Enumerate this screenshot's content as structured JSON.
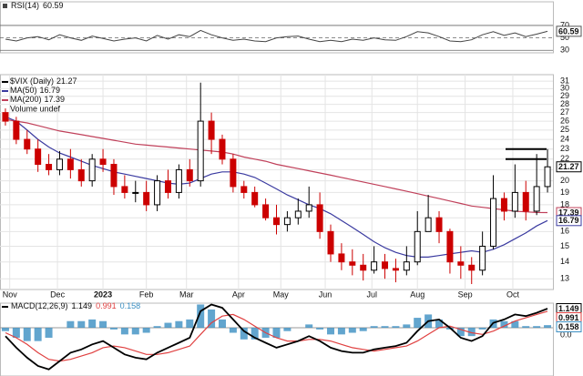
{
  "chart_data": [
    {
      "type": "line",
      "title": "RSI(14)",
      "color": "#444444",
      "values": [
        48,
        45,
        50,
        52,
        47,
        55,
        50,
        46,
        53,
        49,
        45,
        48,
        50,
        45,
        54,
        48,
        55,
        52,
        62,
        55,
        50,
        46,
        48,
        45,
        44,
        50,
        52,
        53,
        48,
        44,
        46,
        44,
        48,
        46,
        50,
        47,
        46,
        52,
        60,
        58,
        52,
        45,
        44,
        47,
        55,
        60,
        54,
        58,
        52,
        56,
        60.59
      ],
      "ylim": [
        26,
        108
      ],
      "yticks": [
        30,
        50,
        70
      ]
    },
    {
      "type": "candlestick",
      "title": "$VIX (Daily)",
      "volume_label": "Volume undef",
      "up_color": "#000000",
      "down_color": "#cc0000",
      "open": [
        27,
        26,
        24,
        23,
        21.5,
        21,
        22,
        21,
        20,
        22,
        21.5,
        19.5,
        19,
        19,
        18,
        20,
        19,
        21,
        20,
        26,
        24,
        22,
        19.5,
        19,
        18,
        17,
        16.5,
        17,
        17.5,
        18,
        16,
        14.5,
        14,
        13.8,
        13.5,
        14,
        13.6,
        13.5,
        14,
        16,
        17,
        16,
        14,
        13.8,
        13.5,
        15,
        18.5,
        17.5,
        19,
        17.5,
        19.5
      ],
      "high": [
        27.5,
        26.5,
        25,
        24,
        22.5,
        22.8,
        23,
        22,
        22.5,
        23,
        22,
        20.5,
        20,
        20,
        20.5,
        21,
        21.5,
        22,
        30.8,
        27,
        24.5,
        22.5,
        20,
        19.5,
        18.5,
        18,
        17.5,
        18.5,
        19.5,
        19,
        16.5,
        15.2,
        14.8,
        14.5,
        15,
        14.5,
        14.2,
        15,
        17.5,
        18.8,
        17.5,
        16.2,
        15,
        14.3,
        16,
        20.5,
        19,
        21.5,
        20,
        22.5,
        23
      ],
      "low": [
        25.5,
        23.5,
        22.5,
        20.8,
        20.5,
        20.5,
        20.2,
        19.5,
        19.5,
        20.8,
        18.8,
        18.5,
        18.2,
        17.5,
        17.5,
        18.5,
        18.5,
        19.5,
        19.5,
        22.5,
        21.5,
        19,
        18.5,
        17.8,
        16.8,
        15.8,
        16,
        16.5,
        17,
        15.5,
        14,
        13.5,
        13.2,
        12.9,
        13.3,
        13,
        12.8,
        13.2,
        13.8,
        16,
        15.2,
        13.3,
        13,
        12.7,
        13.2,
        14.8,
        16.8,
        17,
        16.8,
        17.2,
        19
      ],
      "close": [
        26,
        24,
        23,
        21.5,
        21,
        22,
        21,
        20,
        22,
        21.5,
        19.5,
        19,
        19,
        18,
        20,
        19,
        21,
        20,
        26,
        24,
        22,
        19.5,
        19,
        18,
        17,
        16.5,
        17,
        17.5,
        18,
        16,
        14.5,
        14,
        13.8,
        13.5,
        14,
        13.6,
        13.5,
        14,
        16,
        17,
        16,
        14,
        13.8,
        13.5,
        15,
        18.5,
        17.5,
        19,
        17.5,
        19.5,
        21.27
      ],
      "series": [
        {
          "name": "MA(50)",
          "color": "#3a3aa0",
          "values": [
            26.5,
            26,
            25,
            24,
            23.2,
            22.6,
            22.2,
            21.8,
            21.4,
            21.1,
            20.8,
            20.6,
            20.4,
            20.2,
            20,
            19.8,
            19.7,
            19.8,
            20.2,
            20.6,
            20.8,
            20.8,
            20.6,
            20.3,
            19.8,
            19.3,
            18.8,
            18.4,
            18,
            17.7,
            17.3,
            16.8,
            16.3,
            15.8,
            15.3,
            14.9,
            14.6,
            14.4,
            14.3,
            14.3,
            14.4,
            14.5,
            14.6,
            14.7,
            14.6,
            14.8,
            15.1,
            15.5,
            15.9,
            16.4,
            16.79
          ]
        },
        {
          "name": "MA(200)",
          "color": "#c0405a",
          "values": [
            26.2,
            26,
            25.8,
            25.5,
            25.2,
            24.9,
            24.7,
            24.5,
            24.3,
            24.1,
            23.9,
            23.7,
            23.5,
            23.4,
            23.3,
            23.2,
            23.1,
            23,
            22.9,
            22.8,
            22.7,
            22.5,
            22.2,
            22,
            21.8,
            21.5,
            21.3,
            21.1,
            20.9,
            20.7,
            20.5,
            20.3,
            20.1,
            19.9,
            19.7,
            19.5,
            19.3,
            19.1,
            18.9,
            18.7,
            18.5,
            18.3,
            18.1,
            17.9,
            17.8,
            17.7,
            17.6,
            17.5,
            17.45,
            17.4,
            17.39
          ]
        }
      ],
      "levels": [
        23,
        22
      ],
      "xlim": [
        -0.5,
        50.5
      ],
      "xticks": [
        {
          "value": 0.4,
          "label": "Nov"
        },
        {
          "value": 4.8,
          "label": "Dec"
        },
        {
          "value": 9,
          "label": "2023"
        },
        {
          "value": 13,
          "label": "Feb"
        },
        {
          "value": 16.7,
          "label": "Mar"
        },
        {
          "value": 21.5,
          "label": "Apr"
        },
        {
          "value": 25.4,
          "label": "May"
        },
        {
          "value": 29.5,
          "label": "Jun"
        },
        {
          "value": 33.8,
          "label": "Jul"
        },
        {
          "value": 38,
          "label": "Aug"
        },
        {
          "value": 42.4,
          "label": "Sep"
        },
        {
          "value": 46.8,
          "label": "Oct"
        }
      ],
      "ylim": [
        12.4,
        31.9
      ],
      "log": true,
      "yticks": [
        13,
        14,
        15,
        16,
        17,
        18,
        19,
        20,
        21,
        22,
        23,
        24,
        25,
        26,
        27,
        28,
        29,
        30,
        31
      ],
      "grid": true
    },
    {
      "type": "macd",
      "title": "MACD(12,26,9)",
      "series": [
        {
          "name": "MACD",
          "color": "#000000",
          "values": [
            -0.5,
            -1.2,
            -1.8,
            -2.3,
            -2.5,
            -2.0,
            -1.5,
            -1.3,
            -1.0,
            -0.8,
            -1.2,
            -1.6,
            -1.8,
            -1.9,
            -1.5,
            -1.2,
            -0.9,
            -0.6,
            1.0,
            1.4,
            1.2,
            0.5,
            -0.2,
            -0.6,
            -0.9,
            -1.2,
            -1.0,
            -0.8,
            -0.5,
            -0.8,
            -1.2,
            -1.4,
            -1.5,
            -1.5,
            -1.3,
            -1.2,
            -1.1,
            -0.9,
            -0.2,
            0.4,
            0.5,
            0.0,
            -0.6,
            -0.8,
            -0.5,
            0.3,
            0.5,
            0.8,
            0.7,
            0.9,
            1.149
          ]
        },
        {
          "name": "Signal",
          "color": "#e04040",
          "values": [
            -0.3,
            -0.6,
            -1.0,
            -1.5,
            -1.9,
            -2.0,
            -1.9,
            -1.7,
            -1.5,
            -1.2,
            -1.1,
            -1.2,
            -1.4,
            -1.6,
            -1.6,
            -1.5,
            -1.3,
            -1.1,
            -0.4,
            0.3,
            0.7,
            0.8,
            0.5,
            0.1,
            -0.3,
            -0.6,
            -0.8,
            -0.8,
            -0.7,
            -0.7,
            -0.8,
            -1.0,
            -1.2,
            -1.3,
            -1.4,
            -1.3,
            -1.2,
            -1.1,
            -0.8,
            -0.4,
            0.0,
            0.1,
            -0.1,
            -0.3,
            -0.4,
            -0.2,
            0.1,
            0.4,
            0.6,
            0.8,
            0.991
          ]
        },
        {
          "name": "Histogram",
          "color": "#3b8fc2",
          "values": [
            -0.2,
            -0.6,
            -0.8,
            -0.8,
            -0.6,
            0.0,
            0.4,
            0.4,
            0.5,
            0.4,
            -0.1,
            -0.4,
            -0.4,
            -0.3,
            0.1,
            0.3,
            0.4,
            0.5,
            1.4,
            1.1,
            0.5,
            -0.3,
            -0.7,
            -0.7,
            -0.6,
            -0.6,
            -0.2,
            0.0,
            0.2,
            -0.1,
            -0.4,
            -0.4,
            -0.3,
            -0.2,
            0.1,
            0.1,
            0.1,
            0.2,
            0.6,
            0.8,
            0.5,
            -0.1,
            -0.5,
            -0.5,
            -0.1,
            0.5,
            0.4,
            0.4,
            0.1,
            0.1,
            0.158
          ]
        }
      ],
      "ylim": [
        -2.9,
        1.48
      ],
      "yticks": [
        {
          "value": 0,
          "label": "0.0"
        }
      ]
    }
  ]
}
